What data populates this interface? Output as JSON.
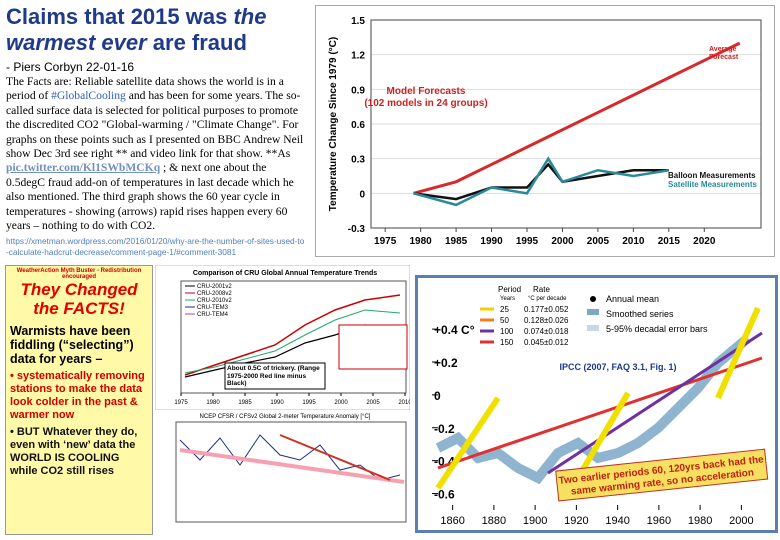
{
  "header": {
    "title_parts": [
      "Claims that 2015 was ",
      "the",
      " warmest ever",
      " are fraud"
    ],
    "byline": "- Piers Corbyn 22-01-16"
  },
  "body": {
    "parts": [
      "The Facts are: Reliable satellite data shows the world is in a period of ",
      "#GlobalCooling",
      " and has been for some years. The so-called surface data is selected for political purposes to promote the discredited CO2 \"Global-warming / \"Climate Change\". For graphs on these points such as I presented on BBC Andrew Neil show Dec 3rd see right ** and video link for that show. **As ",
      "pic.twitter.com/Kl1SWbMCKq",
      " ; & next one about the 0.5degC fraud add-on of temperatures in last decade which he also mentioned. The third graph shows the 60 year cycle in temperatures - showing (arrows) rapid rises happen every 60 years – nothing to do with CO2."
    ],
    "url": "https://xmetman.wordpress.com/2016/01/20/why-are-the-number-of-sites-used-to-calculate-hadcrut-decrease/comment-page-1/#comment-3081"
  },
  "model_chart": {
    "y_label": "Temperature Change Since 1979 (°C)",
    "xlim": [
      1973,
      2028
    ],
    "ylim": [
      -0.3,
      1.5
    ],
    "xticks": [
      1975,
      1980,
      1985,
      1990,
      1995,
      2000,
      2005,
      2010,
      2015,
      2020
    ],
    "yticks": [
      -0.3,
      0,
      0.3,
      0.6,
      0.9,
      1.2,
      1.5
    ],
    "annotations": [
      "Model Forecasts",
      "(102 models in 24 groups)",
      "Average",
      "Forecast",
      "Balloon Measurements",
      "Satellite Measurements"
    ],
    "series": [
      {
        "name": "Average Forecast",
        "color": "#d62a2a",
        "x": [
          1979,
          1985,
          1990,
          1995,
          2000,
          2005,
          2010,
          2015,
          2020,
          2025
        ],
        "values": [
          0,
          0.1,
          0.25,
          0.4,
          0.55,
          0.7,
          0.85,
          1.0,
          1.15,
          1.3
        ]
      },
      {
        "name": "Balloon Measurements",
        "color": "#111111",
        "x": [
          1979,
          1985,
          1990,
          1995,
          1998,
          2000,
          2005,
          2010,
          2015
        ],
        "values": [
          0,
          -0.05,
          0.05,
          0.05,
          0.25,
          0.1,
          0.15,
          0.2,
          0.2
        ]
      },
      {
        "name": "Satellite Measurements",
        "color": "#2a8a9a",
        "x": [
          1979,
          1985,
          1990,
          1995,
          1998,
          2000,
          2005,
          2010,
          2015
        ],
        "values": [
          0,
          -0.1,
          0.05,
          0.0,
          0.3,
          0.1,
          0.2,
          0.15,
          0.2
        ]
      }
    ]
  },
  "mythbuster": {
    "banner": "WeatherAction Myth Buster - Redistribution encouraged",
    "headline": [
      "They Changed",
      "the FACTS!"
    ],
    "lead": "Warmists have been fiddling (“selecting”) data for years –",
    "bullets": [
      "• systematically removing stations to make the data look colder in the past & warmer now",
      "• BUT Whatever they do, even with ‘new’ data the WORLD IS COOLING while CO2 still rises"
    ]
  },
  "cru_chart": {
    "title": "Comparison of CRU Global Annual Temperature Trends",
    "legend": [
      "CRU-2001v2",
      "CRU-2008v2",
      "CRU-2010v2",
      "CRU-TEM3",
      "CRU-TEM4"
    ],
    "annotation": "About 0.5C of trickery. (Range 1975-2000 Red line minus Black)",
    "xticks": [
      1975,
      1980,
      1985,
      1990,
      1995,
      2000,
      2005,
      2010
    ]
  },
  "ncep_chart": {
    "title": "NCEP CFSR / CFSv2 Global 2-meter Temperature Anomaly [°C]"
  },
  "ipcc_chart": {
    "xlim": [
      1850,
      2010
    ],
    "ylim": [
      -0.7,
      0.65
    ],
    "xticks": [
      1860,
      1880,
      1900,
      1920,
      1940,
      1960,
      1980,
      2000
    ],
    "yticks": [
      {
        "value": 0.4,
        "label": "+0.4 C°"
      },
      {
        "value": 0.2,
        "label": "+0.2"
      },
      0,
      -0.2,
      -0.4,
      -0.6
    ],
    "legend_header": [
      "Period",
      "Years",
      "Rate",
      "°C per decade"
    ],
    "periods": [
      {
        "years": "25",
        "rate": "0.177±0.052",
        "color": "#f0d000"
      },
      {
        "years": "50",
        "rate": "0.128±0.026",
        "color": "#f08020"
      },
      {
        "years": "100",
        "rate": "0.074±0.018",
        "color": "#7030a0"
      },
      {
        "years": "150",
        "rate": "0.045±0.012",
        "color": "#e03030"
      }
    ],
    "legend": [
      "Annual mean",
      "Smoothed series",
      "5-95% decadal error bars"
    ],
    "source": "IPCC (2007, FAQ 3.1, Fig. 1)",
    "callout": [
      "Two earlier periods 60, 120yrs back had the",
      "same warming rate, so no acceleration"
    ]
  }
}
